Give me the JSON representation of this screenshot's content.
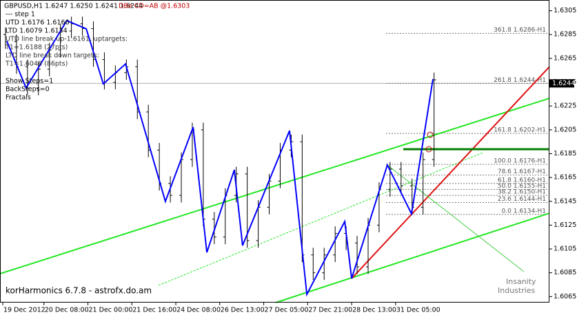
{
  "chart_data": {
    "type": "ohlc",
    "title": "GBPUSD,H1  1.6247 1.6250 1.6241 1.6244",
    "bar_color": "#000000",
    "x": [
      2,
      6,
      10,
      14,
      18,
      22,
      26,
      30,
      34,
      38,
      42,
      46,
      50,
      54,
      58,
      62,
      66,
      70,
      74,
      78,
      82,
      86,
      90,
      94,
      98,
      102,
      106,
      110,
      114,
      118,
      122,
      126,
      130,
      134,
      138,
      142,
      146,
      150,
      154,
      158
    ],
    "open": [
      1.6285,
      1.6279,
      1.6258,
      1.624,
      1.6256,
      1.6272,
      1.6288,
      1.6294,
      1.629,
      1.6264,
      1.6245,
      1.6253,
      1.6258,
      1.622,
      1.6188,
      1.616,
      1.615,
      1.618,
      1.6205,
      1.613,
      1.6115,
      1.615,
      1.6168,
      1.6112,
      1.614,
      1.6162,
      1.6188,
      1.6195,
      1.61,
      1.6085,
      1.61,
      1.6118,
      1.611,
      1.609,
      1.6125,
      1.6155,
      1.6172,
      1.6158,
      1.614,
      1.618
    ],
    "high": [
      1.6291,
      1.6285,
      1.6264,
      1.6262,
      1.6278,
      1.6294,
      1.63,
      1.63,
      1.6296,
      1.627,
      1.6259,
      1.6264,
      1.6264,
      1.6226,
      1.6194,
      1.6166,
      1.6186,
      1.6211,
      1.6211,
      1.6136,
      1.6156,
      1.6174,
      1.6174,
      1.6146,
      1.6168,
      1.6194,
      1.6201,
      1.6201,
      1.6106,
      1.6106,
      1.6124,
      1.6124,
      1.6116,
      1.6131,
      1.6161,
      1.6178,
      1.6178,
      1.6164,
      1.6186,
      1.6253
    ],
    "low": [
      1.6273,
      1.6252,
      1.6234,
      1.6234,
      1.625,
      1.6266,
      1.6282,
      1.6284,
      1.6258,
      1.6239,
      1.6239,
      1.6247,
      1.6214,
      1.6182,
      1.6154,
      1.6144,
      1.6144,
      1.6174,
      1.6124,
      1.6109,
      1.6109,
      1.6144,
      1.6106,
      1.6106,
      1.6134,
      1.6156,
      1.6182,
      1.6094,
      1.6079,
      1.6079,
      1.6094,
      1.6104,
      1.6084,
      1.6084,
      1.6119,
      1.6149,
      1.6152,
      1.6134,
      1.6134,
      1.6174
    ],
    "close": [
      1.6279,
      1.6258,
      1.624,
      1.6256,
      1.6272,
      1.6288,
      1.6294,
      1.629,
      1.6264,
      1.6245,
      1.6253,
      1.6258,
      1.622,
      1.6188,
      1.616,
      1.615,
      1.618,
      1.6205,
      1.613,
      1.6115,
      1.615,
      1.6168,
      1.6112,
      1.614,
      1.6162,
      1.6188,
      1.6195,
      1.61,
      1.6085,
      1.61,
      1.6118,
      1.611,
      1.609,
      1.6125,
      1.6155,
      1.6172,
      1.6158,
      1.614,
      1.618,
      1.6247
    ],
    "zigzag": {
      "color": "#0000ff",
      "x": [
        2.5,
        9.5,
        24.3,
        31.4,
        37.6,
        45.7,
        60.2,
        70.3,
        75.3,
        85.3,
        88.3,
        105.4,
        111.7,
        125.5,
        128,
        141,
        149.8,
        157.6
      ],
      "values": [
        1.62794,
        1.62401,
        1.62967,
        1.62898,
        1.62436,
        1.62603,
        1.61449,
        1.62072,
        1.61021,
        1.61714,
        1.61079,
        1.62043,
        1.60669,
        1.61281,
        1.60802,
        1.61755,
        1.61345,
        1.62476
      ]
    },
    "trendlines": [
      {
        "color": "#22e622",
        "x": [
          0,
          200
        ],
        "values": [
          1.60842,
          1.62315
        ]
      },
      {
        "color": "#22e622",
        "x": [
          100.4,
          200
        ],
        "values": [
          1.606,
          1.6135
        ]
      },
      {
        "color": "#22e622",
        "x": [
          57.7,
          175.7
        ],
        "values": [
          1.60744,
          1.61858
        ],
        "dashed": true
      },
      {
        "color": "#e01010",
        "x": [
          128,
          200
        ],
        "values": [
          1.60802,
          1.6258
        ]
      },
      {
        "color": "#44cc44",
        "x": [
          141,
          190.7
        ],
        "values": [
          1.61755,
          1.6086
        ]
      },
      {
        "color": "#008000",
        "x": [
          146.8,
          200
        ],
        "values": [
          1.61887,
          1.61887
        ]
      }
    ],
    "fib_levels": [
      {
        "value": 1.6286,
        "label": "361.8 1.6286-H1"
      },
      {
        "value": 1.6244,
        "label": "261.8 1.6244-H1"
      },
      {
        "value": 1.6202,
        "label": "161.8 1.6202-H1"
      },
      {
        "value": 1.6176,
        "label": "100.0 1.6176-H1"
      },
      {
        "value": 1.6167,
        "label": "78.6 1.6167-H1"
      },
      {
        "value": 1.616,
        "label": "61.8 1.6160-H1"
      },
      {
        "value": 1.6155,
        "label": "50.0 1.6155-H1"
      },
      {
        "value": 1.615,
        "label": "38.2 1.6150-H1"
      },
      {
        "value": 1.6144,
        "label": "23.6 1.6144-H1"
      },
      {
        "value": 1.6134,
        "label": "0.0 1.6134-H1"
      }
    ],
    "current_price": {
      "value": 1.6244,
      "label": "1.6244"
    },
    "xlim": [
      0,
      200
    ],
    "ylim": [
      1.606,
      1.6314
    ],
    "yticks": [
      1.6305,
      1.6285,
      1.6265,
      1.6245,
      1.6225,
      1.6205,
      1.6185,
      1.6165,
      1.6145,
      1.6125,
      1.6105,
      1.6085,
      1.6065
    ],
    "xticks": [
      {
        "value": 1,
        "label": "19 Dec 2012"
      },
      {
        "value": 16,
        "label": "20 Dec 08:00"
      },
      {
        "value": 32,
        "label": "21 Dec 00:00"
      },
      {
        "value": 48,
        "label": "21 Dec 16:00"
      },
      {
        "value": 64,
        "label": "24 Dec 08:00"
      },
      {
        "value": 80,
        "label": "26 Dec 13:00"
      },
      {
        "value": 96,
        "label": "27 Dec 05:00"
      },
      {
        "value": 112,
        "label": "27 Dec 21:00"
      },
      {
        "value": 128,
        "label": "28 Dec 13:00"
      },
      {
        "value": 144,
        "label": "31 Dec 05:00"
      }
    ],
    "annotations": {
      "pattern": "DBe CD=AB  @1.6303",
      "step": "---  step 1",
      "utd": "UTD  1.6176  1.6166",
      "ltd": "LTD  1.6079  1.6134",
      "utd_break": "UTD line break up-1.6161, uptargets:",
      "utd_target": "T1=1.6188 (27pts)",
      "ltd_break": "LTD line break down targets:",
      "ltd_target": "T1=1.6048 (86pts)",
      "show_steps": "Show Steps=1",
      "back_steps": "BackSteps=0",
      "fractals": "Fractals",
      "footer": "korHarmonics 6.7.8 - astrofx.do.am",
      "watermark_1": "Insanity",
      "watermark_2": "Industries"
    }
  }
}
